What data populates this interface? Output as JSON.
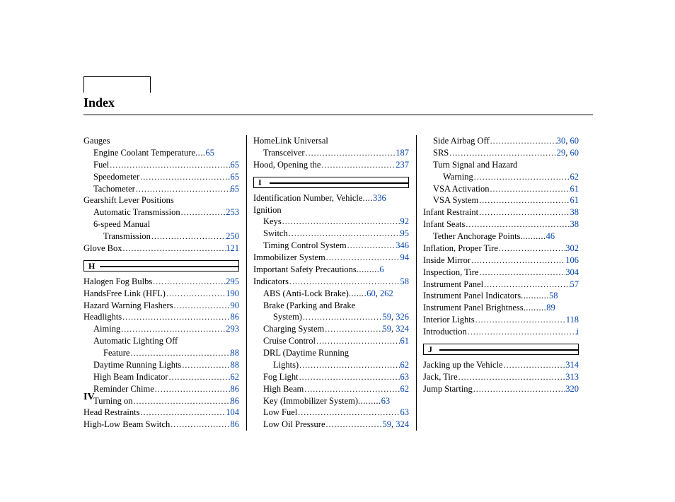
{
  "title": "Index",
  "footer": "IV",
  "letters": {
    "H": "H",
    "I": "I",
    "J": "J"
  },
  "col1": [
    {
      "t": "group",
      "label": "Gauges"
    },
    {
      "t": "entry",
      "indent": 1,
      "label": "Engine Coolant Temperature",
      "dots": " .... ",
      "page": "65"
    },
    {
      "t": "entry",
      "indent": 1,
      "label": "Fuel",
      "page": "65"
    },
    {
      "t": "entry",
      "indent": 1,
      "label": "Speedometer",
      "page": "65"
    },
    {
      "t": "entry",
      "indent": 1,
      "label": "Tachometer",
      "page": "65"
    },
    {
      "t": "group",
      "label": "Gearshift Lever Positions"
    },
    {
      "t": "entry",
      "indent": 1,
      "label": "Automatic Transmission",
      "page": "253"
    },
    {
      "t": "group",
      "indent": 1,
      "label": "6-speed Manual"
    },
    {
      "t": "entry",
      "indent": 2,
      "label": "Transmission",
      "page": "250"
    },
    {
      "t": "entry",
      "indent": 0,
      "label": "Glove Box",
      "page": "121"
    },
    {
      "t": "letter",
      "key": "H"
    },
    {
      "t": "entry",
      "indent": 0,
      "label": "Halogen Fog Bulbs",
      "page": "295"
    },
    {
      "t": "entry",
      "indent": 0,
      "label": "HandsFree Link (HFL)",
      "page": "190"
    },
    {
      "t": "entry",
      "indent": 0,
      "label": "Hazard Warning Flashers",
      "page": "90"
    },
    {
      "t": "entry",
      "indent": 0,
      "label": "Headlights",
      "page": "86"
    },
    {
      "t": "entry",
      "indent": 1,
      "label": "Aiming",
      "page": "293"
    },
    {
      "t": "group",
      "indent": 1,
      "label": "Automatic Lighting Off"
    },
    {
      "t": "entry",
      "indent": 2,
      "label": "Feature",
      "page": "88"
    },
    {
      "t": "entry",
      "indent": 1,
      "label": "Daytime Running Lights",
      "page": "88"
    },
    {
      "t": "entry",
      "indent": 1,
      "label": "High Beam Indicator",
      "page": "62"
    },
    {
      "t": "entry",
      "indent": 1,
      "label": "Reminder Chime",
      "page": "86"
    },
    {
      "t": "entry",
      "indent": 1,
      "label": "Turning on",
      "page": "86"
    },
    {
      "t": "entry",
      "indent": 0,
      "label": "Head Restraints",
      "page": "104"
    },
    {
      "t": "entry",
      "indent": 0,
      "label": "High-Low Beam Switch",
      "page": "86"
    }
  ],
  "col2": [
    {
      "t": "group",
      "label": "HomeLink Universal"
    },
    {
      "t": "entry",
      "indent": 1,
      "label": "Transceiver",
      "page": "187"
    },
    {
      "t": "entry",
      "indent": 0,
      "label": "Hood, Opening the",
      "page": "237"
    },
    {
      "t": "letter",
      "key": "I"
    },
    {
      "t": "entry",
      "indent": 0,
      "label": "Identification Number, Vehicle",
      "dots": ".... ",
      "page": "336"
    },
    {
      "t": "group",
      "label": "Ignition"
    },
    {
      "t": "entry",
      "indent": 1,
      "label": "Keys",
      "page": "92"
    },
    {
      "t": "entry",
      "indent": 1,
      "label": "Switch",
      "page": "95"
    },
    {
      "t": "entry",
      "indent": 1,
      "label": "Timing Control System",
      "page": "346"
    },
    {
      "t": "entry",
      "indent": 0,
      "label": "Immobilizer System",
      "page": "94"
    },
    {
      "t": "entry",
      "indent": 0,
      "label": "Important Safety Precautions",
      "dots": " ......... ",
      "page": "6"
    },
    {
      "t": "entry",
      "indent": 0,
      "label": "Indicators",
      "page": "58"
    },
    {
      "t": "entry2",
      "indent": 1,
      "label": "ABS (Anti-Lock Brake)",
      "dots": "....... ",
      "pages": [
        "60",
        "262"
      ]
    },
    {
      "t": "group",
      "indent": 1,
      "label": "Brake (Parking and Brake"
    },
    {
      "t": "entry2",
      "indent": 2,
      "label": "System)",
      "pages": [
        "59",
        "326"
      ]
    },
    {
      "t": "entry2",
      "indent": 1,
      "label": "Charging System",
      "pages": [
        "59",
        "324"
      ]
    },
    {
      "t": "entry",
      "indent": 1,
      "label": "Cruise Control",
      "page": "61"
    },
    {
      "t": "group",
      "indent": 1,
      "label": "DRL (Daytime Running"
    },
    {
      "t": "entry",
      "indent": 2,
      "label": "Lights)",
      "page": "62"
    },
    {
      "t": "entry",
      "indent": 1,
      "label": "Fog Light",
      "page": "63"
    },
    {
      "t": "entry",
      "indent": 1,
      "label": "High Beam",
      "page": "62"
    },
    {
      "t": "entry",
      "indent": 1,
      "label": "Key (Immobilizer System)",
      "dots": " ......... ",
      "page": "63"
    },
    {
      "t": "entry",
      "indent": 1,
      "label": "Low Fuel",
      "page": "63"
    },
    {
      "t": "entry2",
      "indent": 1,
      "label": "Low Oil Pressure",
      "pages": [
        "59",
        "324"
      ]
    }
  ],
  "col3": [
    {
      "t": "entry2",
      "indent": 1,
      "label": "Side Airbag Off",
      "pages": [
        "30",
        "60"
      ]
    },
    {
      "t": "entry2",
      "indent": 1,
      "label": "SRS",
      "pages": [
        "29",
        "60"
      ]
    },
    {
      "t": "group",
      "indent": 1,
      "label": "Turn Signal and Hazard"
    },
    {
      "t": "entry",
      "indent": 2,
      "label": "Warning",
      "page": "62"
    },
    {
      "t": "entry",
      "indent": 1,
      "label": "VSA Activation",
      "page": "61"
    },
    {
      "t": "entry",
      "indent": 1,
      "label": "VSA System",
      "page": "61"
    },
    {
      "t": "entry",
      "indent": 0,
      "label": "Infant Restraint",
      "page": "38"
    },
    {
      "t": "entry",
      "indent": 0,
      "label": "Infant Seats",
      "page": "38"
    },
    {
      "t": "entry",
      "indent": 1,
      "label": "Tether Anchorage Points",
      "dots": " .......... ",
      "page": "46"
    },
    {
      "t": "entry",
      "indent": 0,
      "label": "Inflation, Proper Tire",
      "page": "302"
    },
    {
      "t": "entry",
      "indent": 0,
      "label": "Inside Mirror",
      "page": "106"
    },
    {
      "t": "entry",
      "indent": 0,
      "label": "Inspection, Tire",
      "page": "304"
    },
    {
      "t": "entry",
      "indent": 0,
      "label": "Instrument Panel",
      "page": "57"
    },
    {
      "t": "entry",
      "indent": 0,
      "label": "Instrument Panel Indicators",
      "dots": "........... ",
      "page": "58"
    },
    {
      "t": "entry",
      "indent": 0,
      "label": "Instrument Panel Brightness",
      "dots": " ......... ",
      "page": "89"
    },
    {
      "t": "entry",
      "indent": 0,
      "label": "Interior Lights",
      "page": "118"
    },
    {
      "t": "entry",
      "indent": 0,
      "label": "Introduction",
      "page": "i"
    },
    {
      "t": "letter",
      "key": "J"
    },
    {
      "t": "entry",
      "indent": 0,
      "label": "Jacking up the Vehicle",
      "page": "314"
    },
    {
      "t": "entry",
      "indent": 0,
      "label": "Jack, Tire",
      "page": "313"
    },
    {
      "t": "entry",
      "indent": 0,
      "label": "Jump Starting",
      "page": "320"
    }
  ]
}
